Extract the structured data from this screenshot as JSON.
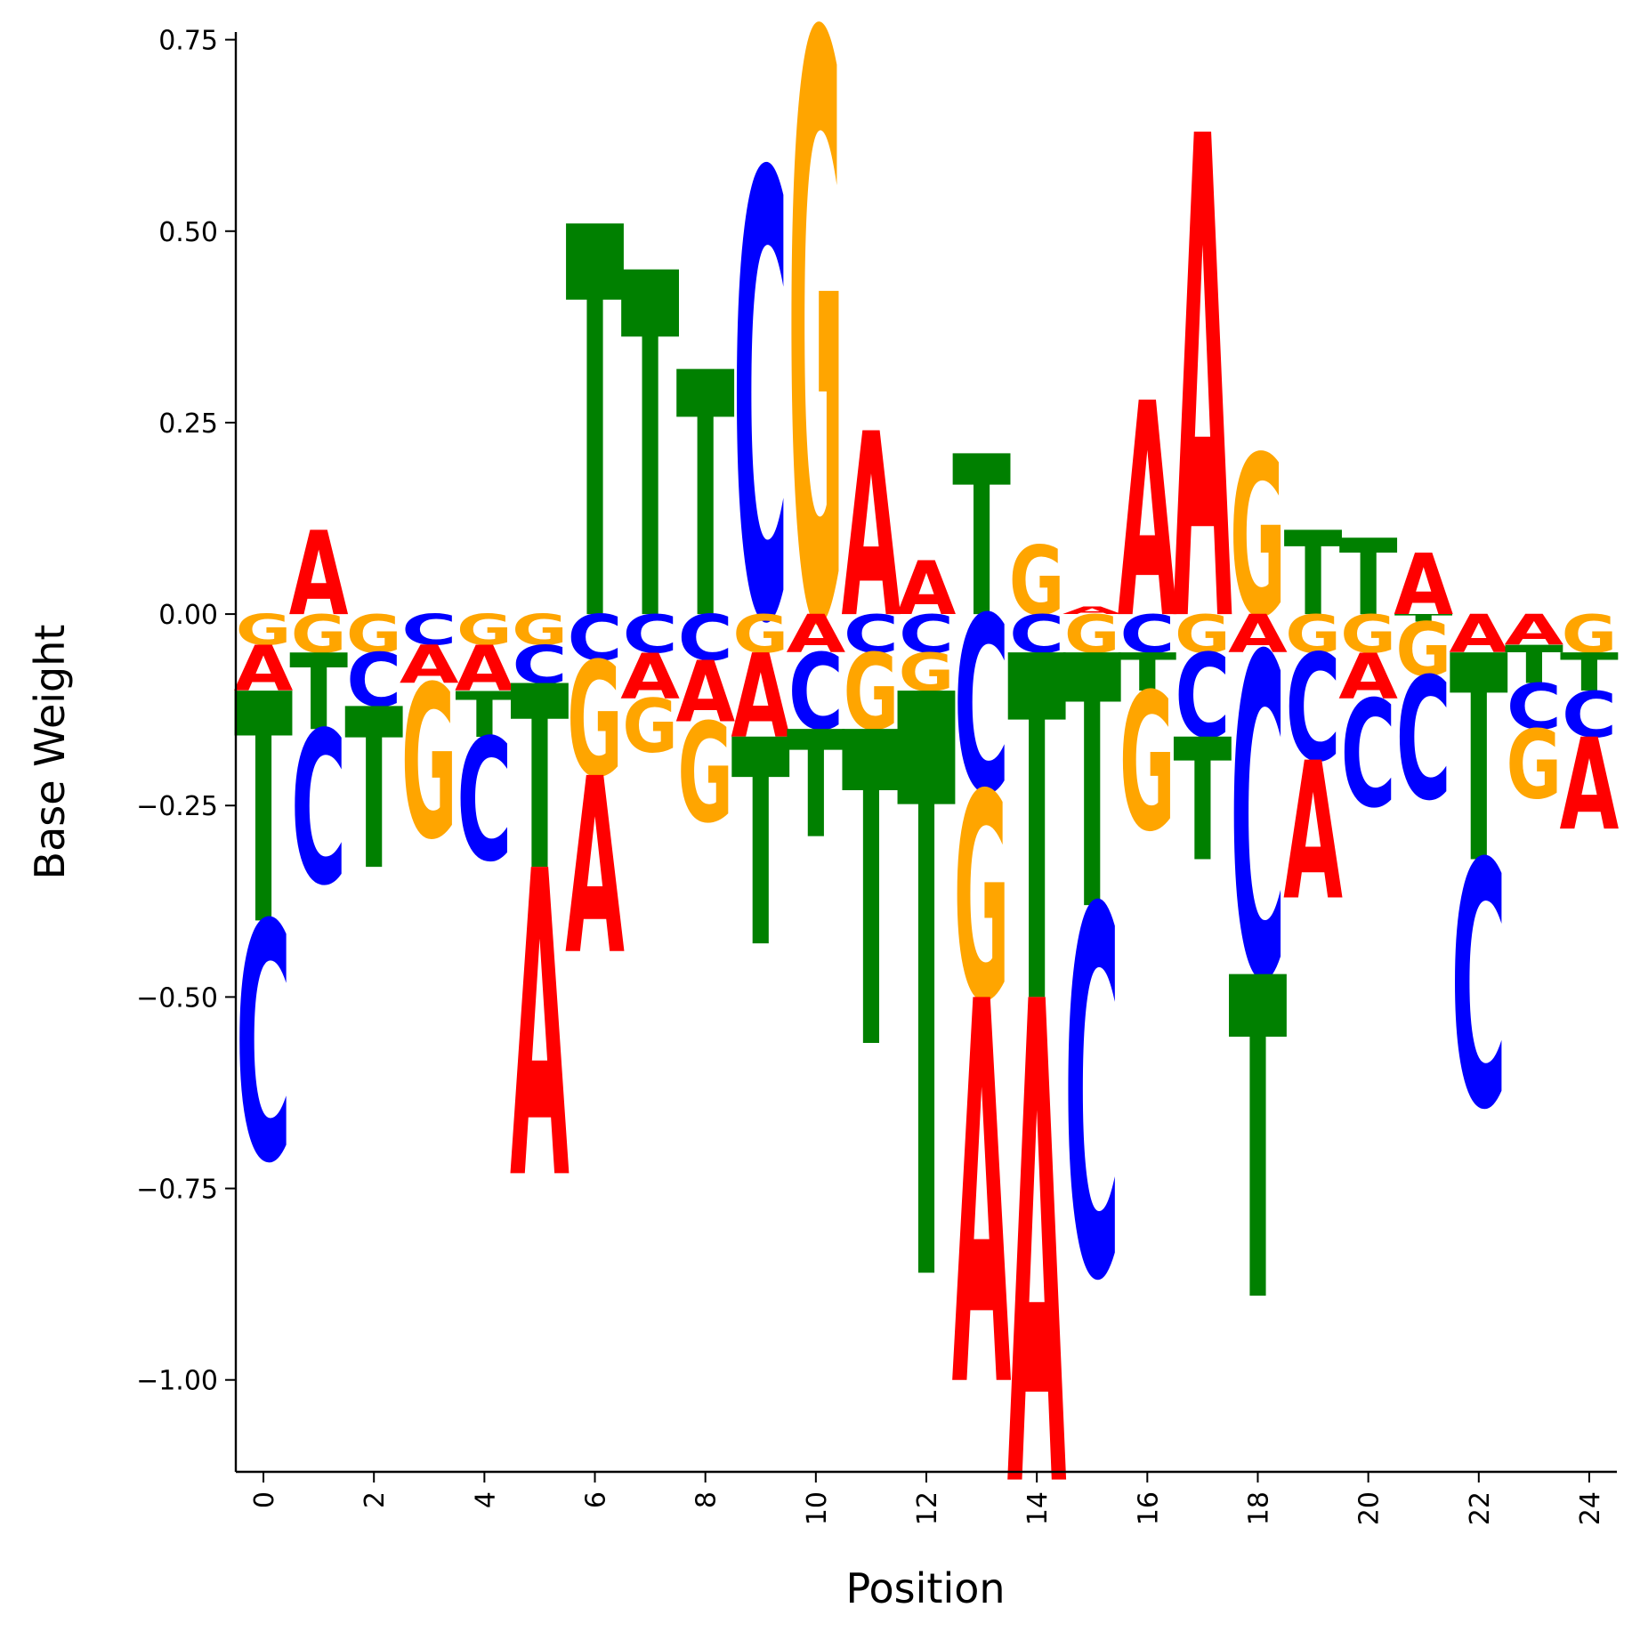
{
  "chart_data": {
    "type": "sequence-logo",
    "title": "",
    "xlabel": "Position",
    "ylabel": "Base Weight",
    "ylim": [
      -1.12,
      0.76
    ],
    "xlim": [
      -0.5,
      24.5
    ],
    "x_ticks": [
      0,
      2,
      4,
      6,
      8,
      10,
      12,
      14,
      16,
      18,
      20,
      22,
      24
    ],
    "x_tick_labels": [
      "0",
      "2",
      "4",
      "6",
      "8",
      "10",
      "12",
      "14",
      "16",
      "18",
      "20",
      "22",
      "24"
    ],
    "y_ticks": [
      -1.0,
      -0.75,
      -0.5,
      -0.25,
      0.0,
      0.25,
      0.5,
      0.75
    ],
    "y_tick_labels": [
      "−1.00",
      "−0.75",
      "−0.50",
      "−0.25",
      "0.00",
      "0.25",
      "0.50",
      "0.75"
    ],
    "grid": false,
    "colors": {
      "A": "#ff0000",
      "C": "#0000ff",
      "G": "#ffa500",
      "T": "#008000"
    },
    "positions": [
      {
        "x": 0,
        "A": -0.06,
        "C": -0.31,
        "G": -0.04,
        "T": -0.3
      },
      {
        "x": 1,
        "A": 0.11,
        "C": -0.2,
        "G": -0.05,
        "T": -0.1
      },
      {
        "x": 2,
        "A": 0.0,
        "C": -0.07,
        "G": -0.05,
        "T": -0.21
      },
      {
        "x": 3,
        "A": -0.05,
        "C": -0.04,
        "G": -0.2,
        "T": 0.0
      },
      {
        "x": 4,
        "A": -0.06,
        "C": -0.16,
        "G": -0.04,
        "T": -0.06
      },
      {
        "x": 5,
        "A": -0.4,
        "C": -0.05,
        "G": -0.04,
        "T": -0.24
      },
      {
        "x": 6,
        "A": -0.23,
        "C": -0.06,
        "G": -0.15,
        "T": 0.51
      },
      {
        "x": 7,
        "A": -0.06,
        "C": -0.05,
        "G": -0.07,
        "T": 0.45
      },
      {
        "x": 8,
        "A": -0.08,
        "C": -0.06,
        "G": -0.13,
        "T": 0.32
      },
      {
        "x": 9,
        "A": -0.11,
        "C": 0.58,
        "G": -0.05,
        "T": -0.27
      },
      {
        "x": 10,
        "A": -0.05,
        "C": -0.1,
        "G": 0.76,
        "T": -0.14
      },
      {
        "x": 11,
        "A": 0.24,
        "C": -0.05,
        "G": -0.1,
        "T": -0.41
      },
      {
        "x": 12,
        "A": 0.07,
        "C": -0.05,
        "G": -0.05,
        "T": -0.76
      },
      {
        "x": 13,
        "A": -0.5,
        "C": -0.23,
        "G": -0.27,
        "T": 0.21
      },
      {
        "x": 14,
        "A": -0.63,
        "C": -0.05,
        "G": 0.09,
        "T": -0.45
      },
      {
        "x": 15,
        "A": 0.01,
        "C": -0.48,
        "G": -0.05,
        "T": -0.33
      },
      {
        "x": 16,
        "A": 0.28,
        "C": -0.05,
        "G": -0.18,
        "T": -0.05
      },
      {
        "x": 17,
        "A": 0.63,
        "C": -0.11,
        "G": -0.05,
        "T": -0.16
      },
      {
        "x": 18,
        "A": -0.05,
        "C": -0.42,
        "G": 0.21,
        "T": -0.42
      },
      {
        "x": 19,
        "A": -0.18,
        "C": -0.14,
        "G": -0.05,
        "T": 0.11
      },
      {
        "x": 20,
        "A": -0.06,
        "C": -0.14,
        "G": -0.05,
        "T": 0.1
      },
      {
        "x": 21,
        "A": 0.08,
        "C": -0.16,
        "G": -0.07,
        "T": -0.01
      },
      {
        "x": 22,
        "A": -0.05,
        "C": -0.32,
        "G": 0.0,
        "T": -0.27
      },
      {
        "x": 23,
        "A": -0.04,
        "C": -0.06,
        "G": -0.09,
        "T": -0.05
      },
      {
        "x": 24,
        "A": -0.12,
        "C": -0.06,
        "G": -0.05,
        "T": -0.05
      }
    ]
  }
}
